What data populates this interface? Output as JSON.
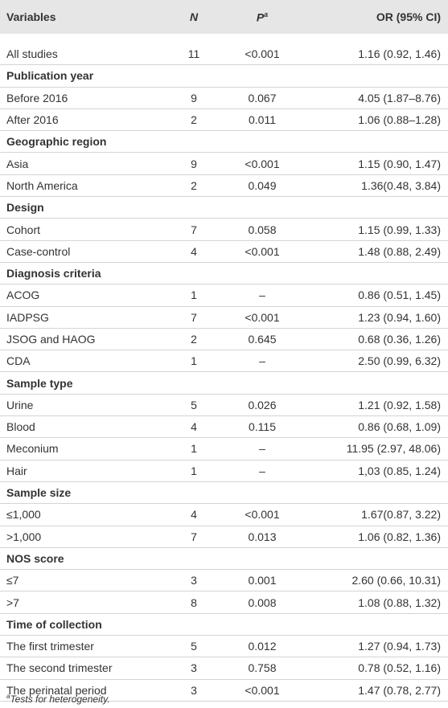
{
  "table": {
    "header": [
      {
        "text": "Variables"
      },
      {
        "text": "N"
      },
      {
        "text": "P",
        "sup": "a"
      },
      {
        "text": "OR (95% CI)"
      }
    ],
    "rows": [
      [
        "All studies",
        "11",
        "<0.001",
        "1.16 (0.92, 1.46)"
      ],
      [
        "Publication year"
      ],
      [
        "Before 2016",
        "9",
        "0.067",
        "4.05 (1.87–8.76)"
      ],
      [
        "After 2016",
        "2",
        "0.011",
        "1.06 (0.88–1.28)"
      ],
      [
        "Geographic region"
      ],
      [
        "Asia",
        "9",
        "<0.001",
        "1.15 (0.90, 1.47)"
      ],
      [
        "North America",
        "2",
        "0.049",
        "1.36(0.48, 3.84)"
      ],
      [
        "Design"
      ],
      [
        "Cohort",
        "7",
        "0.058",
        "1.15 (0.99, 1.33)"
      ],
      [
        "Case-control",
        "4",
        "<0.001",
        "1.48 (0.88, 2.49)"
      ],
      [
        "Diagnosis criteria"
      ],
      [
        "ACOG",
        "1",
        "–",
        "0.86 (0.51, 1.45)"
      ],
      [
        "IADPSG",
        "7",
        "<0.001",
        "1.23 (0.94, 1.60)"
      ],
      [
        "JSOG and HAOG",
        "2",
        "0.645",
        "0.68 (0.36, 1.26)"
      ],
      [
        "CDA",
        "1",
        "–",
        "2.50 (0.99, 6.32)"
      ],
      [
        "Sample type"
      ],
      [
        "Urine",
        "5",
        "0.026",
        "1.21 (0.92, 1.58)"
      ],
      [
        "Blood",
        "4",
        "0.115",
        "0.86 (0.68, 1.09)"
      ],
      [
        "Meconium",
        "1",
        "–",
        "11.95 (2.97, 48.06)"
      ],
      [
        "Hair",
        "1",
        "–",
        "1,03 (0.85, 1.24)"
      ],
      [
        "Sample size"
      ],
      [
        "≤1,000",
        "4",
        "<0.001",
        "1.67(0.87, 3.22)"
      ],
      [
        ">1,000",
        "7",
        "0.013",
        "1.06 (0.82, 1.36)"
      ],
      [
        "NOS score"
      ],
      [
        "≤7",
        "3",
        "0.001",
        "2.60 (0.66, 10.31)"
      ],
      [
        ">7",
        "8",
        "0.008",
        "1.08 (0.88, 1.32)"
      ],
      [
        "Time of collection"
      ],
      [
        "The first trimester",
        "5",
        "0.012",
        "1.27 (0.94, 1.73)"
      ],
      [
        "The second trimester",
        "3",
        "0.758",
        "0.78 (0.52, 1.16)"
      ],
      [
        "The perinatal period",
        "3",
        "<0.001",
        "1.47 (0.78, 2.77)"
      ]
    ],
    "footnote": {
      "sup": "a",
      "text": "Tests for heterogeneity."
    }
  }
}
